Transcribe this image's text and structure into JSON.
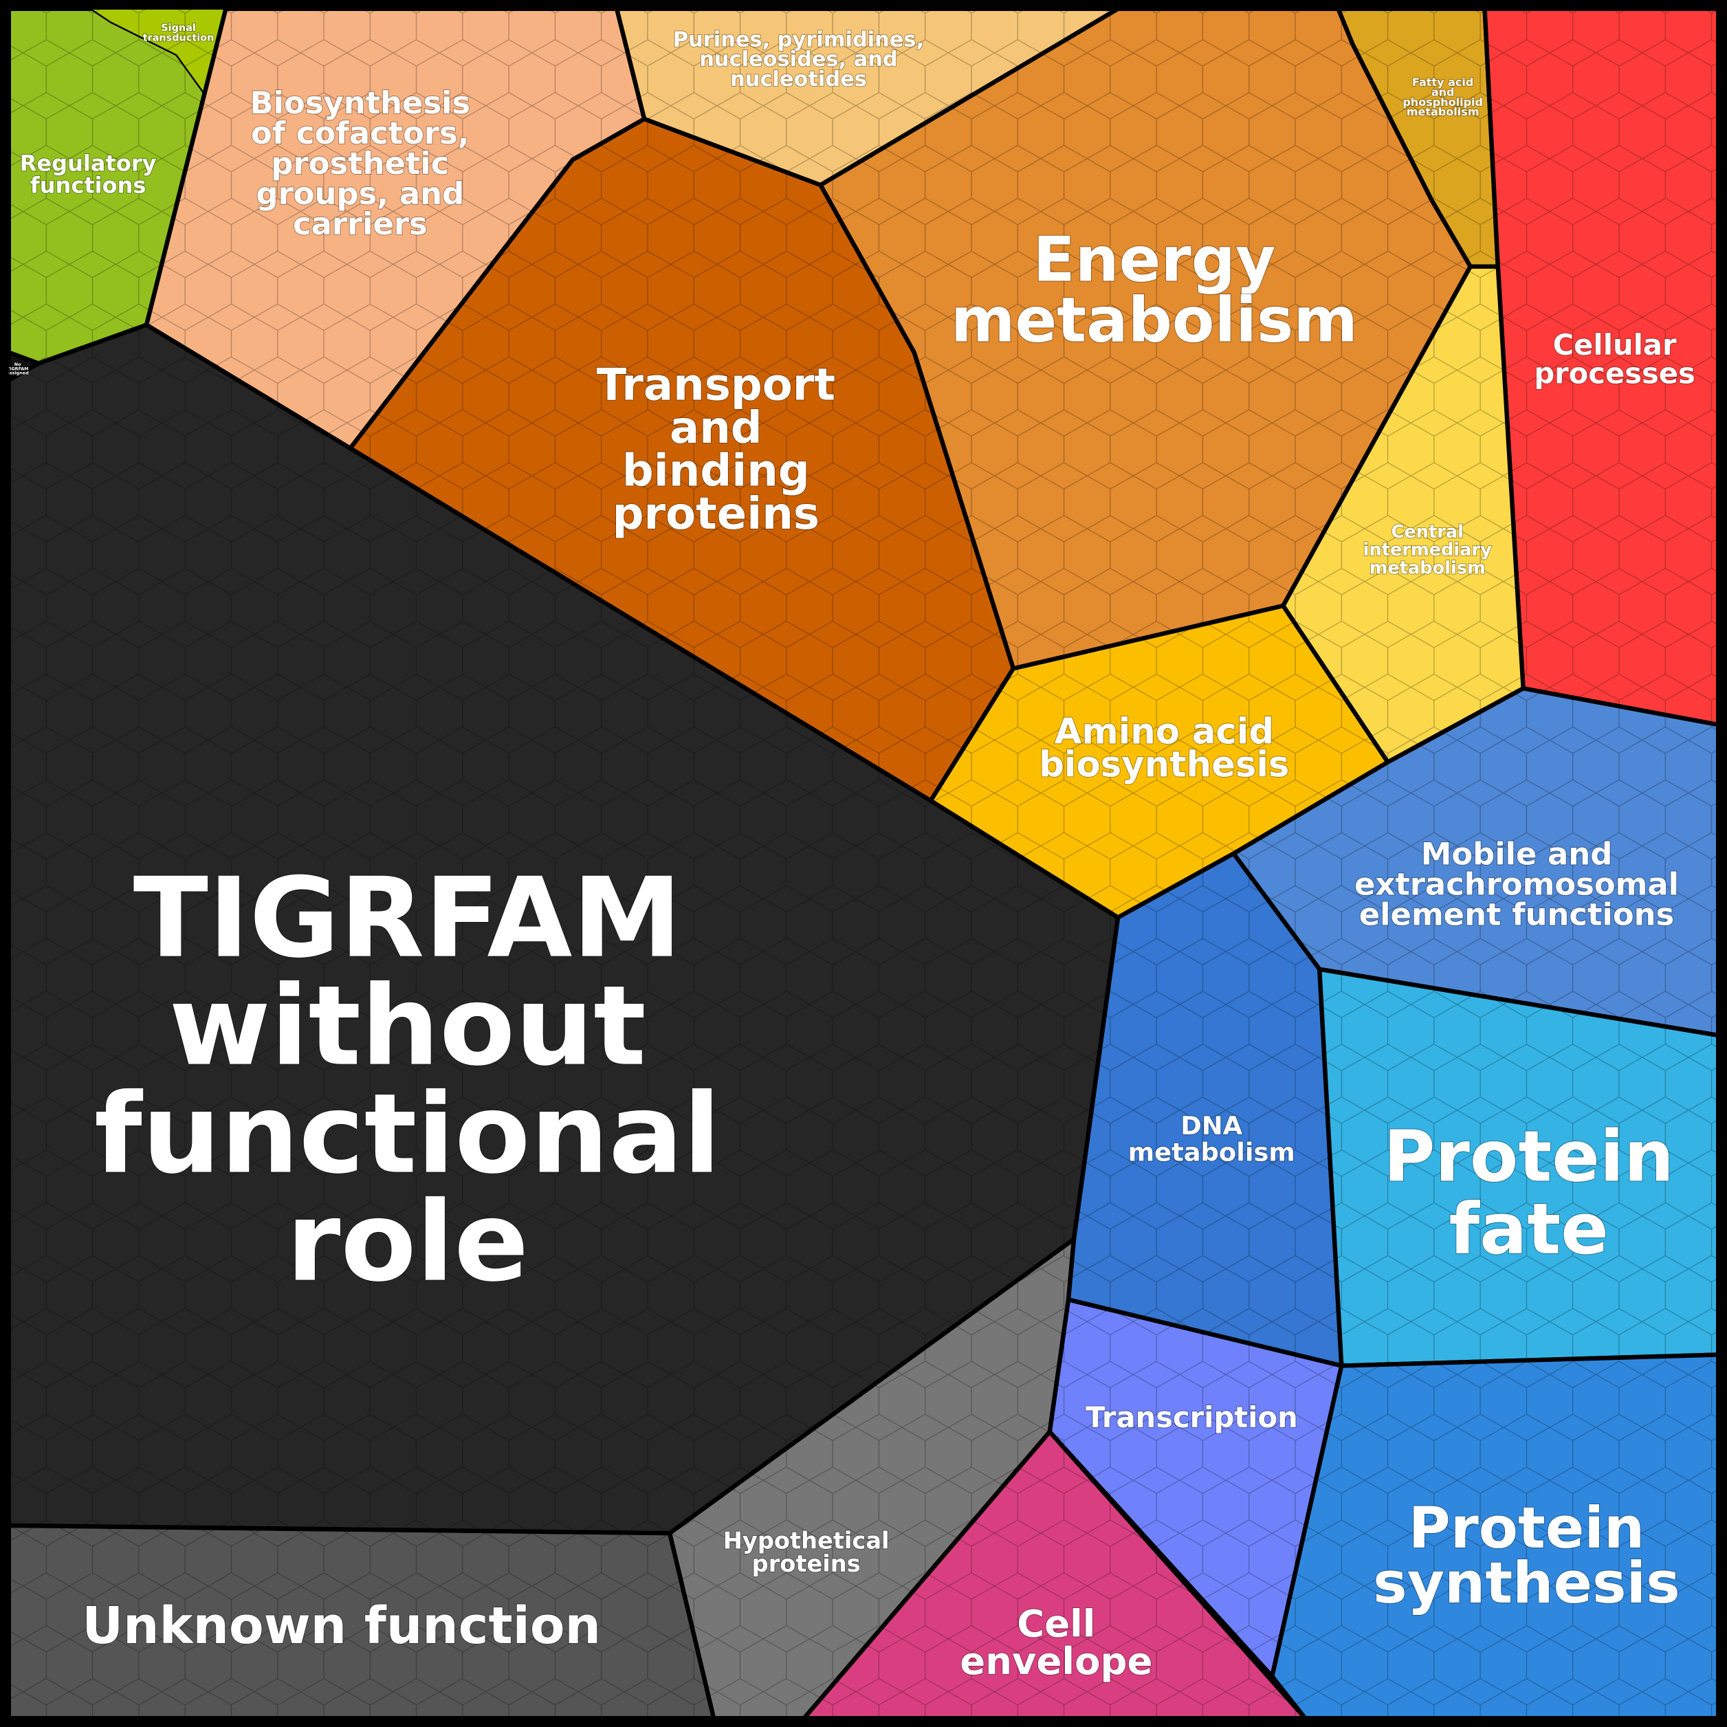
{
  "treemap": {
    "regions": [
      {
        "id": "regulatory",
        "label": [
          "Regulatory",
          "functions"
        ],
        "color": "#93c01f"
      },
      {
        "id": "signal",
        "label": [
          "Signal",
          "transduction"
        ],
        "color": "#a9c800"
      },
      {
        "id": "cofactors",
        "label": [
          "Biosynthesis",
          "of cofactors,",
          "prosthetic",
          "groups, and",
          "carriers"
        ],
        "color": "#f7b283"
      },
      {
        "id": "purines",
        "label": [
          "Purines, pyrimidines,",
          "nucleosides, and",
          "nucleotides"
        ],
        "color": "#f5c677"
      },
      {
        "id": "fatty",
        "label": [
          "Fatty acid",
          "and",
          "phospholipid",
          "metabolism"
        ],
        "color": "#dca520"
      },
      {
        "id": "energy",
        "label": [
          "Energy",
          "metabolism"
        ],
        "color": "#e38b2f"
      },
      {
        "id": "transport",
        "label": [
          "Transport",
          "and",
          "binding",
          "proteins"
        ],
        "color": "#cc6000"
      },
      {
        "id": "cellular",
        "label": [
          "Cellular",
          "processes"
        ],
        "color": "#fe3b3a"
      },
      {
        "id": "central",
        "label": [
          "Central",
          "intermediary",
          "metabolism"
        ],
        "color": "#fbd94b"
      },
      {
        "id": "amino",
        "label": [
          "Amino acid",
          "biosynthesis"
        ],
        "color": "#fcbf00"
      },
      {
        "id": "mobile",
        "label": [
          "Mobile and",
          "extrachromosomal",
          "element functions"
        ],
        "color": "#4f88d6"
      },
      {
        "id": "dna",
        "label": [
          "DNA",
          "metabolism"
        ],
        "color": "#3577d2"
      },
      {
        "id": "fate",
        "label": [
          "Protein",
          "fate"
        ],
        "color": "#35b3e5"
      },
      {
        "id": "transcription",
        "label": [
          "Transcription"
        ],
        "color": "#6f82fb"
      },
      {
        "id": "synthesis",
        "label": [
          "Protein",
          "synthesis"
        ],
        "color": "#2f88de"
      },
      {
        "id": "envelope",
        "label": [
          "Cell",
          "envelope"
        ],
        "color": "#d93f80"
      },
      {
        "id": "hypothetical",
        "label": [
          "Hypothetical",
          "proteins"
        ],
        "color": "#777777"
      },
      {
        "id": "unknown",
        "label": [
          "Unknown function"
        ],
        "color": "#555555"
      },
      {
        "id": "tigrfam",
        "label": [
          "TIGRFAM",
          "without",
          "functional",
          "role"
        ],
        "color": "#262626"
      },
      {
        "id": "noassign",
        "label": [
          "No",
          "TIGRFAM",
          "assigned"
        ],
        "color": "#111111"
      }
    ]
  }
}
